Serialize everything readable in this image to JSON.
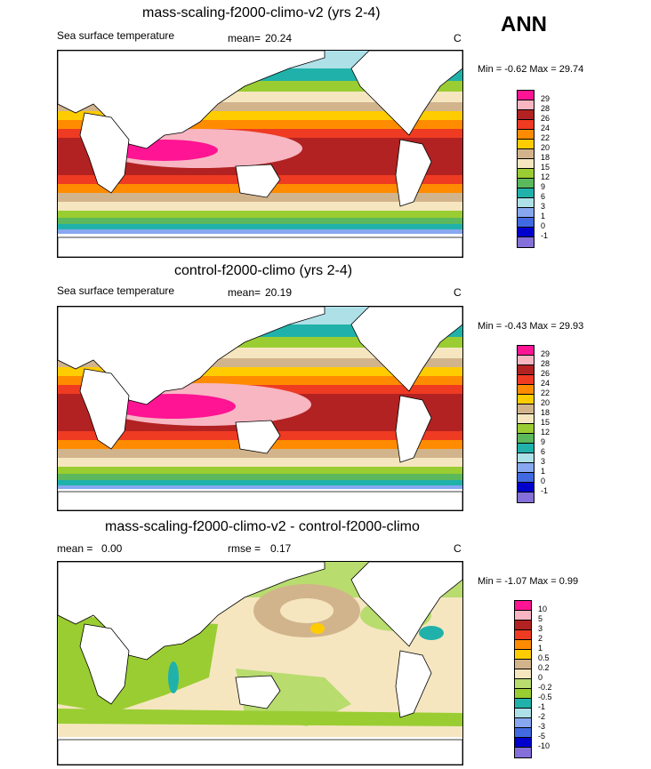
{
  "season": "ANN",
  "panels": [
    {
      "title": "mass-scaling-f2000-climo-v2 (yrs 2-4)",
      "left_label": "Sea surface temperature",
      "mean_label": "mean=",
      "mean_value": "20.24",
      "unit": "C",
      "minmax": "Min = -0.62 Max = 29.74",
      "colorbar_levels": [
        "29",
        "28",
        "26",
        "24",
        "22",
        "20",
        "18",
        "15",
        "12",
        "9",
        "6",
        "3",
        "1",
        "0",
        "-1"
      ]
    },
    {
      "title": "control-f2000-climo (yrs 2-4)",
      "left_label": "Sea surface temperature",
      "mean_label": "mean=",
      "mean_value": "20.19",
      "unit": "C",
      "minmax": "Min = -0.43 Max = 29.93",
      "colorbar_levels": [
        "29",
        "28",
        "26",
        "24",
        "22",
        "20",
        "18",
        "15",
        "12",
        "9",
        "6",
        "3",
        "1",
        "0",
        "-1"
      ]
    },
    {
      "title": "mass-scaling-f2000-climo-v2 - control-f2000-climo",
      "left_label": "mean =",
      "left_value": "0.00",
      "rmse_label": "rmse =",
      "rmse_value": "0.17",
      "unit": "C",
      "minmax": "Min = -1.07 Max = 0.99",
      "colorbar_levels": [
        "10",
        "5",
        "3",
        "2",
        "1",
        "0.5",
        "0.2",
        "0",
        "-0.2",
        "-0.5",
        "-1",
        "-2",
        "-3",
        "-5",
        "-10"
      ]
    }
  ],
  "colors": {
    "sst_scale": [
      "#ff1493",
      "#f7b6c2",
      "#b22222",
      "#ee3b22",
      "#ff8c00",
      "#ffcc00",
      "#d2b48c",
      "#f5e6c0",
      "#9acd32",
      "#5cb85c",
      "#20b2aa",
      "#aee0e8",
      "#87a8f0",
      "#4169e1",
      "#0000cd",
      "#8470d8"
    ],
    "diff_scale": [
      "#ff1493",
      "#f7b6c2",
      "#b22222",
      "#ee3b22",
      "#ff8c00",
      "#ffcc00",
      "#d2b48c",
      "#f5e6c0",
      "#b8dc6e",
      "#9acd32",
      "#20b2aa",
      "#aee0e8",
      "#87a8f0",
      "#4169e1",
      "#0000cd",
      "#8470d8"
    ]
  }
}
